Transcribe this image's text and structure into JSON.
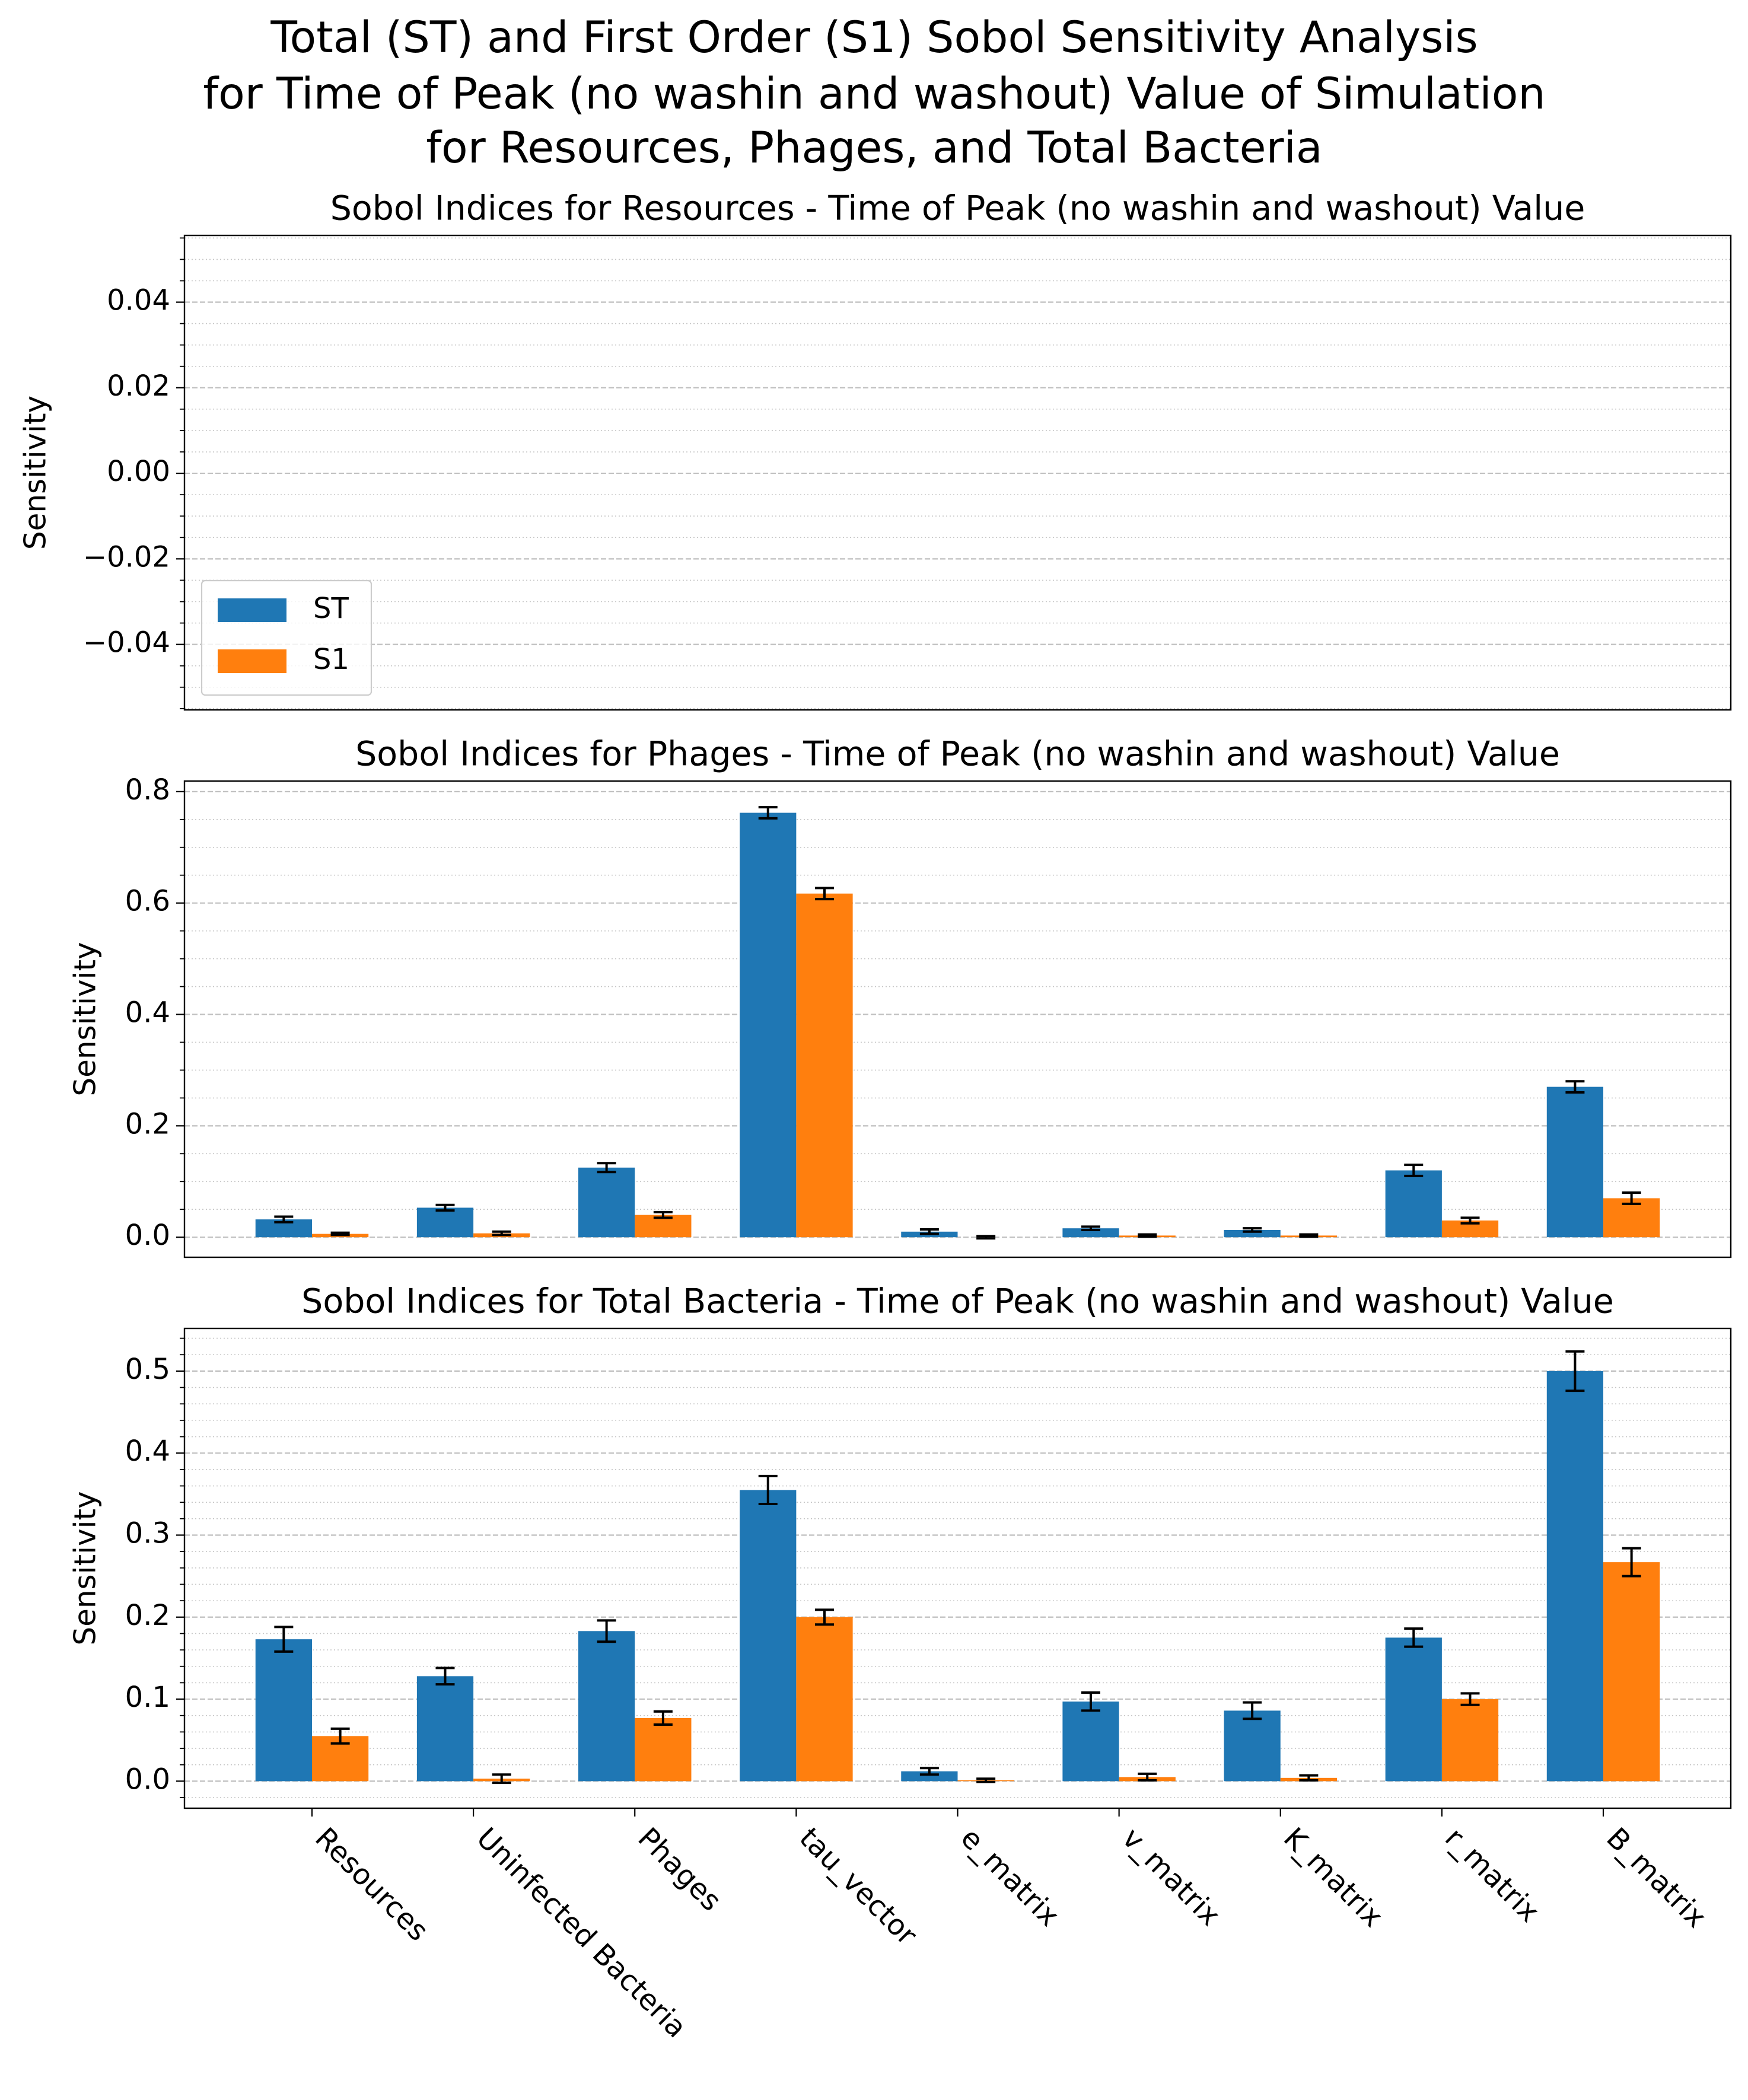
{
  "title": [
    "Total (ST) and First Order (S1) Sobol Sensitivity Analysis",
    "for Time of Peak (no washin and washout) Value of Simulation",
    "for Resources, Phages, and Total Bacteria"
  ],
  "chart_data": [
    {
      "type": "bar",
      "title": "Sobol Indices for Resources - Time of Peak (no washin and washout) Value",
      "ylabel": "Sensitivity",
      "ylim": [
        -0.0553,
        0.0556
      ],
      "yticks": [
        {
          "value": -0.04,
          "label": "−0.04"
        },
        {
          "value": -0.02,
          "label": "−0.02"
        },
        {
          "value": 0,
          "label": "0.00"
        },
        0.02,
        0.04
      ],
      "grid": true,
      "minor_grid": true,
      "legend": "lower left",
      "series": [
        {
          "name": "ST",
          "color": "#1f77b4"
        },
        {
          "name": "S1",
          "color": "#ff7f0e"
        }
      ]
    },
    {
      "type": "bar",
      "title": "Sobol Indices for Phages - Time of Peak (no washin and washout) Value",
      "ylabel": "Sensitivity",
      "ylim": [
        -0.036,
        0.819
      ],
      "yticks": [
        {
          "value": 0,
          "label": "0.0"
        },
        0.2,
        0.4,
        0.6,
        0.8
      ],
      "grid": true,
      "minor_grid": true,
      "series": [
        {
          "name": "ST",
          "color": "#1f77b4",
          "values": [
            0.032,
            0.053,
            0.125,
            0.762,
            0.01,
            0.016,
            0.013,
            0.12,
            0.27
          ],
          "errors": [
            0.005,
            0.005,
            0.008,
            0.01,
            0.004,
            0.003,
            0.003,
            0.01,
            0.01
          ]
        },
        {
          "name": "S1",
          "color": "#ff7f0e",
          "values": [
            0.006,
            0.007,
            0.04,
            0.617,
            0.0,
            0.003,
            0.003,
            0.03,
            0.07
          ],
          "errors": [
            0.002,
            0.003,
            0.005,
            0.01,
            0.002,
            0.002,
            0.002,
            0.005,
            0.01
          ]
        }
      ]
    },
    {
      "type": "bar",
      "title": "Sobol Indices for Total Bacteria - Time of Peak (no washin and washout) Value",
      "ylabel": "Sensitivity",
      "categories": [
        "Resources",
        "Uninfected Bacteria",
        "Phages",
        "tau_vector",
        "e_matrix",
        "v_matrix",
        "K_matrix",
        "r_matrix",
        "B_matrix"
      ],
      "ylim": [
        -0.033,
        0.552
      ],
      "yticks": [
        {
          "value": 0,
          "label": "0.0"
        },
        0.1,
        0.2,
        0.3,
        0.4,
        0.5
      ],
      "grid": true,
      "minor_grid": true,
      "series": [
        {
          "name": "ST",
          "color": "#1f77b4",
          "values": [
            0.173,
            0.128,
            0.183,
            0.355,
            0.012,
            0.097,
            0.086,
            0.175,
            0.5
          ],
          "errors": [
            0.015,
            0.01,
            0.013,
            0.017,
            0.004,
            0.011,
            0.01,
            0.011,
            0.024
          ]
        },
        {
          "name": "S1",
          "color": "#ff7f0e",
          "values": [
            0.055,
            0.003,
            0.077,
            0.2,
            0.001,
            0.005,
            0.004,
            0.1,
            0.267
          ],
          "errors": [
            0.009,
            0.005,
            0.008,
            0.009,
            0.002,
            0.004,
            0.003,
            0.007,
            0.017
          ]
        }
      ]
    }
  ]
}
